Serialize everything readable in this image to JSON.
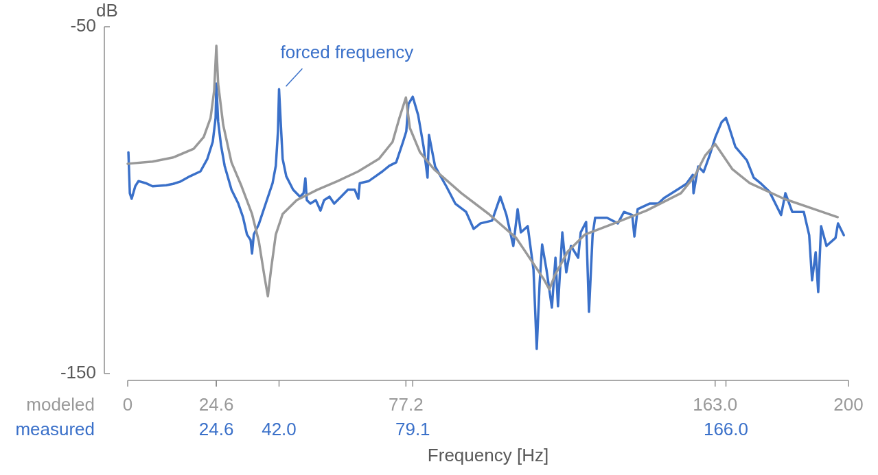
{
  "chart_data": {
    "type": "line",
    "xlabel": "Frequency [Hz]",
    "ylabel": "dB",
    "xlim": [
      0,
      200
    ],
    "xticks": [
      0,
      24.6,
      77.2,
      {
        "value": 163,
        "label": "163.0"
      },
      200
    ],
    "x2lim": [
      0,
      200
    ],
    "x2ticks": [
      24.6,
      {
        "value": 42,
        "label": "42.0"
      },
      79.1,
      {
        "value": 166,
        "label": "166.0"
      }
    ],
    "ylim": [
      -150,
      -50
    ],
    "yticks": [
      -150,
      -50
    ],
    "annotations": [
      {
        "text": "forced frequency",
        "x": 42,
        "y": -68
      }
    ],
    "series": [
      {
        "name": "measured",
        "color": "#3a70c9",
        "axis": "x2",
        "x": [
          0.2,
          0.6,
          1.1,
          2.1,
          3.0,
          5.0,
          6.9,
          10.7,
          12.6,
          14.5,
          17.3,
          20.2,
          22.1,
          23.6,
          24.4,
          24.6,
          25.1,
          25.9,
          26.9,
          28.8,
          30.7,
          32.0,
          33.1,
          34.1,
          34.5,
          35.0,
          36.4,
          38.3,
          40.2,
          41.1,
          41.7,
          42.0,
          42.5,
          43.0,
          44.0,
          45.9,
          47.8,
          48.8,
          49.3,
          49.7,
          50.7,
          52.2,
          53.5,
          54.5,
          56.0,
          57.3,
          59.2,
          61.1,
          63.0,
          64.0,
          64.4,
          66.9,
          68.8,
          70.7,
          72.6,
          74.5,
          76.4,
          77.3,
          77.9,
          79.1,
          80.6,
          82.1,
          83.2,
          83.6,
          85.3,
          88.4,
          90.9,
          93.9,
          96.0,
          97.9,
          101.1,
          103.4,
          105.1,
          107.0,
          108.2,
          109.1,
          111.0,
          112.6,
          113.5,
          114.3,
          115.0,
          116.2,
          117.7,
          118.7,
          119.4,
          120.6,
          121.7,
          123.0,
          125.0,
          125.7,
          127.2,
          128.0,
          129.0,
          129.7,
          133.0,
          136.0,
          137.7,
          140.0,
          140.6,
          141.5,
          144.8,
          147.2,
          148.8,
          152.8,
          155.0,
          156.8,
          157.0,
          158.3,
          159.8,
          161.5,
          163.0,
          164.8,
          166.0,
          166.8,
          168.6,
          171.8,
          173.7,
          175.8,
          178.1,
          181.3,
          182.5,
          184.4,
          187.6,
          189.1,
          189.9,
          190.9,
          191.6,
          192.4,
          193.9,
          196.4,
          197.1,
          198.7
        ],
        "values": [
          -86.2,
          -98.0,
          -99.6,
          -96.0,
          -94.5,
          -95.1,
          -96.0,
          -95.7,
          -95.3,
          -94.7,
          -93.1,
          -91.7,
          -88.1,
          -83.2,
          -76.3,
          -66.4,
          -77.3,
          -84.2,
          -90.1,
          -97.0,
          -101.0,
          -104.9,
          -109.9,
          -111.5,
          -115.4,
          -109.9,
          -106.9,
          -101.0,
          -95.1,
          -90.1,
          -80.2,
          -68.0,
          -78.3,
          -88.1,
          -93.1,
          -97.0,
          -99.0,
          -98.0,
          -93.7,
          -100.0,
          -101.0,
          -100.0,
          -103.0,
          -100.0,
          -99.0,
          -101.0,
          -99.0,
          -97.0,
          -97.0,
          -99.6,
          -95.1,
          -94.5,
          -93.1,
          -91.7,
          -90.1,
          -89.1,
          -83.2,
          -80.2,
          -72.3,
          -70.2,
          -75.5,
          -84.6,
          -93.5,
          -81.2,
          -90.3,
          -96.0,
          -101.0,
          -103.4,
          -108.3,
          -106.7,
          -105.9,
          -99.0,
          -104.3,
          -113.2,
          -102.6,
          -109.3,
          -107.5,
          -120.0,
          -142.9,
          -124.1,
          -112.8,
          -120.0,
          -131.0,
          -116.6,
          -130.6,
          -109.3,
          -120.8,
          -113.2,
          -116.6,
          -109.3,
          -106.3,
          -132.2,
          -110.1,
          -105.1,
          -105.1,
          -106.7,
          -103.4,
          -104.3,
          -110.5,
          -102.6,
          -101.0,
          -101.0,
          -99.4,
          -96.8,
          -95.3,
          -92.7,
          -98.0,
          -90.3,
          -91.9,
          -87.0,
          -82.0,
          -77.5,
          -76.3,
          -78.7,
          -84.6,
          -88.5,
          -93.5,
          -95.3,
          -97.6,
          -104.3,
          -98.0,
          -103.4,
          -103.4,
          -110.1,
          -123.1,
          -115.0,
          -126.5,
          -107.5,
          -113.2,
          -110.9,
          -106.7,
          -110.1
        ]
      },
      {
        "name": "modeled",
        "color": "#999999",
        "x": [
          0,
          6.9,
          12.6,
          18.3,
          21.1,
          23.0,
          24.0,
          24.6,
          25.1,
          26.5,
          28.8,
          31.6,
          34.5,
          36.4,
          37.9,
          38.9,
          39.8,
          41.1,
          43.0,
          46.9,
          52.6,
          58.3,
          64.0,
          69.7,
          73.5,
          75.4,
          77.2,
          78.3,
          81.1,
          85.0,
          92.6,
          100.2,
          107.8,
          111.6,
          115.4,
          117.0,
          118.5,
          122.1,
          126.9,
          134.5,
          144.0,
          153.5,
          157.3,
          160.2,
          163.0,
          164.6,
          167.8,
          172.6,
          182.1,
          191.6,
          197.0
        ],
        "values": [
          -89.5,
          -88.9,
          -87.7,
          -85.2,
          -81.8,
          -76.3,
          -68.4,
          -55.5,
          -66.4,
          -78.3,
          -89.1,
          -96.0,
          -104.0,
          -111.9,
          -121.7,
          -127.7,
          -119.8,
          -109.9,
          -104.0,
          -100.0,
          -97.0,
          -94.5,
          -91.7,
          -88.1,
          -83.2,
          -76.3,
          -70.4,
          -79.2,
          -86.2,
          -91.1,
          -98.0,
          -104.0,
          -110.9,
          -116.8,
          -122.7,
          -125.7,
          -121.7,
          -114.8,
          -109.9,
          -106.9,
          -103.0,
          -98.0,
          -93.1,
          -87.2,
          -83.8,
          -86.2,
          -91.1,
          -95.1,
          -99.6,
          -103.0,
          -104.9
        ]
      }
    ]
  }
}
